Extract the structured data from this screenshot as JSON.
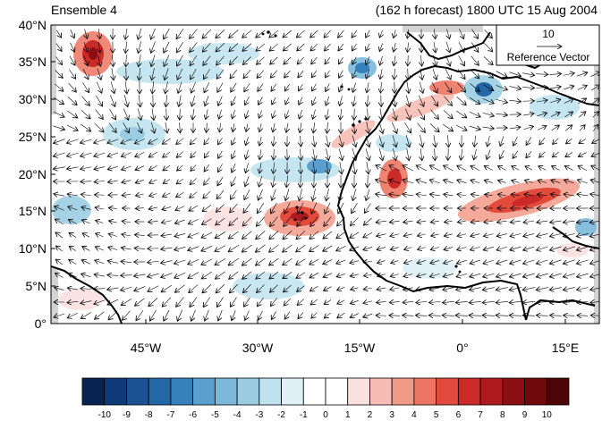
{
  "title_left": "Ensemble 4",
  "title_right": "(162 h forecast) 1800 UTC 15 Aug 2004",
  "lat_labels": [
    "40°N",
    "35°N",
    "30°N",
    "25°N",
    "20°N",
    "15°N",
    "10°N",
    "5°N",
    "0°"
  ],
  "lon_labels": [
    "45°W",
    "30°W",
    "15°W",
    "0°",
    "15°E"
  ],
  "reference_vector": {
    "magnitude": "10",
    "label": "Reference Vector"
  },
  "colorbar": {
    "labels": [
      "-10",
      "-9",
      "-8",
      "-7",
      "-6",
      "-5",
      "-4",
      "-3",
      "-2",
      "-1",
      "0",
      "1",
      "2",
      "3",
      "4",
      "5",
      "6",
      "7",
      "8",
      "9",
      "10"
    ],
    "colors": [
      "#08234f",
      "#0e3a78",
      "#1a5294",
      "#2467a8",
      "#3580bd",
      "#5b9fcf",
      "#7cb8da",
      "#9bcde2",
      "#bfe3ee",
      "#dff1f7",
      "#ffffff",
      "#ffffff",
      "#fbe0e0",
      "#f7bdb4",
      "#f29a88",
      "#ec7563",
      "#e24a3c",
      "#cc2a28",
      "#ad1b1f",
      "#8b0e13",
      "#6e0a0c",
      "#4d0507"
    ]
  },
  "map": {
    "ocean_color": "#ffffff",
    "missing_color": "#d3d3d3",
    "coast_color": "#000000"
  }
}
